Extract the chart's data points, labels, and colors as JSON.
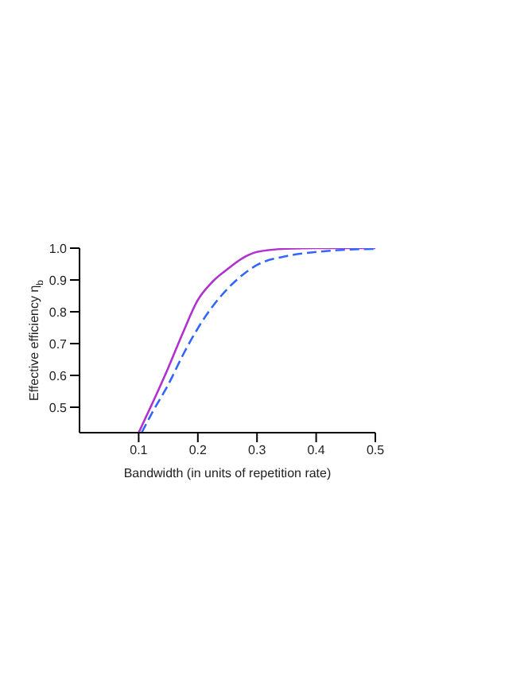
{
  "chart_data": {
    "type": "line",
    "xlabel": "Bandwidth (in units of repetition rate)",
    "ylabel": "Effective efficiency η$_{b}$",
    "xlim": [
      0,
      0.5
    ],
    "ylim": [
      0.42,
      1.0
    ],
    "xticks": [
      0.1,
      0.2,
      0.3,
      0.4,
      0.5
    ],
    "yticks": [
      0.5,
      0.6,
      0.7,
      0.8,
      0.9,
      {
        "value": 1.0,
        "label": "1.0"
      }
    ],
    "grid": false,
    "legend": false,
    "marker": "none",
    "series": [
      {
        "color": "#b030d0",
        "line_style": "solid",
        "x": [
          0.1,
          0.125,
          0.15,
          0.175,
          0.2,
          0.225,
          0.25,
          0.275,
          0.3,
          0.35,
          0.4,
          0.45,
          0.5
        ],
        "values": [
          0.42,
          0.52,
          0.624,
          0.735,
          0.837,
          0.895,
          0.934,
          0.968,
          0.988,
          0.998,
          1.0,
          1.0,
          1.0
        ]
      },
      {
        "color": "#3366ff",
        "line_style": "dashed",
        "x": [
          0.105,
          0.125,
          0.15,
          0.175,
          0.2,
          0.225,
          0.25,
          0.275,
          0.3,
          0.35,
          0.4,
          0.45,
          0.5
        ],
        "values": [
          0.42,
          0.49,
          0.571,
          0.665,
          0.748,
          0.817,
          0.872,
          0.915,
          0.947,
          0.975,
          0.988,
          0.995,
          0.998
        ]
      }
    ]
  }
}
